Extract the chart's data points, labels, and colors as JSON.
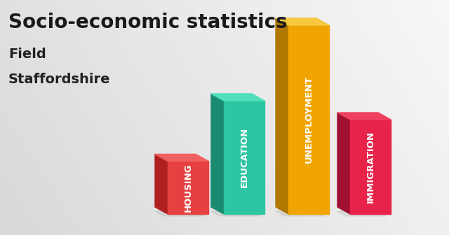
{
  "title": "Socio-economic statistics",
  "subtitle1": "Field",
  "subtitle2": "Staffordshire",
  "categories": [
    "HOUSING",
    "EDUCATION",
    "UNEMPLOYMENT",
    "IMMIGRATION"
  ],
  "values": [
    0.28,
    0.6,
    1.0,
    0.5
  ],
  "front_colors": [
    "#E84040",
    "#2DC5A2",
    "#F0A500",
    "#E8234A"
  ],
  "dark_colors": [
    "#B02020",
    "#1A8A70",
    "#B07800",
    "#A01030"
  ],
  "top_colors": [
    "#F06060",
    "#50E0BC",
    "#F8C840",
    "#F04060"
  ],
  "title_fontsize": 20,
  "subtitle_fontsize": 14,
  "label_fontsize": 9.5
}
